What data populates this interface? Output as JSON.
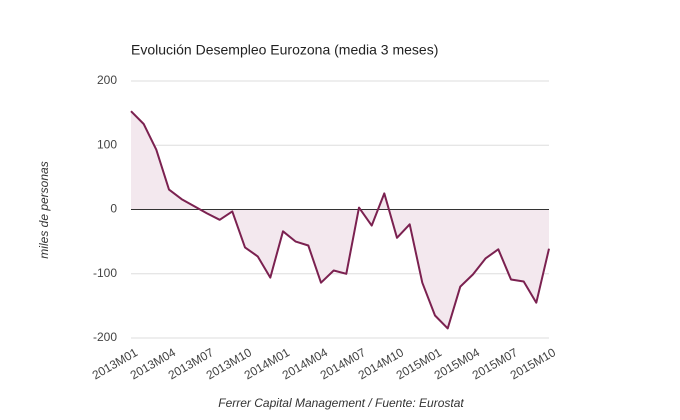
{
  "chart_data": {
    "type": "area",
    "title": "Evolución Desempleo Eurozona (media 3 meses)",
    "y_label": "miles de personas",
    "x_label": "Ferrer Capital Management / Fuente: Eurostat",
    "categories": [
      "2013M01",
      null,
      null,
      "2013M04",
      null,
      null,
      "2013M07",
      null,
      null,
      "2013M10",
      null,
      null,
      "2014M01",
      null,
      null,
      "2014M04",
      null,
      null,
      "2014M07",
      null,
      null,
      "2014M10",
      null,
      null,
      "2015M01",
      null,
      null,
      "2015M04",
      null,
      null,
      "2015M07",
      null,
      null,
      "2015M10"
    ],
    "values": [
      153,
      133,
      93,
      31,
      16,
      5,
      -6,
      -16,
      -3,
      -59,
      -73,
      -106,
      -34,
      -50,
      -56,
      -114,
      -95,
      -100,
      3,
      -25,
      25,
      -44,
      -23,
      -114,
      -165,
      -185,
      -120,
      -101,
      -76,
      -62,
      -109,
      -112,
      -145,
      -61
    ],
    "color": "#7b2150",
    "fill_color": "#f3e8ee",
    "ylim": [
      -200,
      200
    ],
    "yticks": [
      -200,
      -100,
      0,
      100,
      200
    ],
    "grid": true
  }
}
